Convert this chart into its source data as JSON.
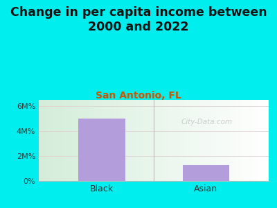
{
  "title": "Change in per capita income between\n2000 and 2022",
  "subtitle": "San Antonio, FL",
  "categories": [
    "Black",
    "Asian"
  ],
  "values": [
    5000000,
    1300000
  ],
  "bar_color": "#b39ddb",
  "background_color": "#00EEEE",
  "title_fontsize": 12.5,
  "subtitle_fontsize": 10,
  "subtitle_color": "#cc5500",
  "ytick_labels": [
    "0%",
    "2M%",
    "4M%",
    "6M%"
  ],
  "ytick_values": [
    0,
    2000000,
    4000000,
    6000000
  ],
  "ylim": [
    0,
    6500000
  ],
  "watermark": "City-Data.com",
  "grid_color": "#e0d0d0",
  "axis_color": "#bbbbbb"
}
